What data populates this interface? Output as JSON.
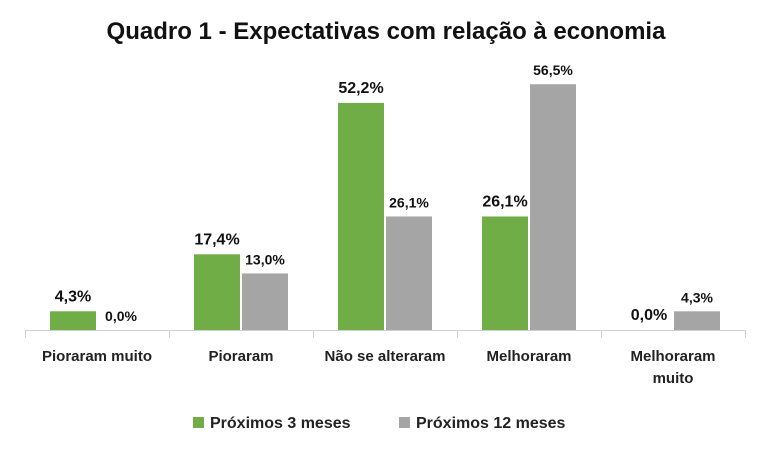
{
  "chart_data": {
    "type": "bar",
    "title": "Quadro 1 - Expectativas com relação à economia",
    "categories": [
      [
        "Pioraram muito"
      ],
      [
        "Pioraram"
      ],
      [
        "Não se alteraram"
      ],
      [
        "Melhoraram"
      ],
      [
        "Melhoraram",
        "muito"
      ]
    ],
    "series": [
      {
        "name": "Próximos 3 meses",
        "color": "#70ad47",
        "values": [
          4.3,
          17.4,
          52.2,
          26.1,
          0.0
        ],
        "labels": [
          "4,3%",
          "17,4%",
          "52,2%",
          "26,1%",
          "0,0%"
        ]
      },
      {
        "name": "Próximos 12 meses",
        "color": "#a5a5a5",
        "values": [
          0.0,
          13.0,
          26.1,
          56.5,
          4.3
        ],
        "labels": [
          "0,0%",
          "13,0%",
          "26,1%",
          "56,5%",
          "4,3%"
        ]
      }
    ],
    "ylim": [
      0,
      60
    ],
    "grid": false,
    "legend": "bottom",
    "xlabel": "",
    "ylabel": ""
  }
}
